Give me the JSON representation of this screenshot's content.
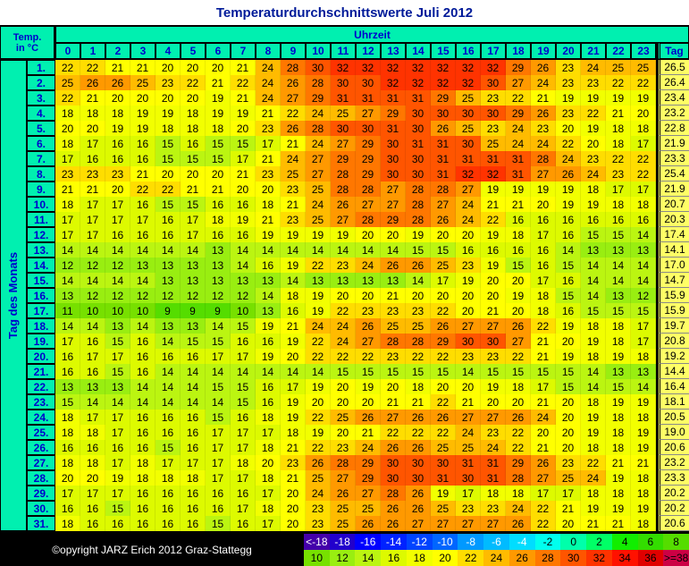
{
  "title": "Temperaturdurchschnittswerte Juli 2012",
  "corner_label": [
    "Temp.",
    "in °C"
  ],
  "column_group_label": "Uhrzeit",
  "row_group_label": "Tag des Monats",
  "total_label": "Tag",
  "hours": [
    0,
    1,
    2,
    3,
    4,
    5,
    6,
    7,
    8,
    9,
    10,
    11,
    12,
    13,
    14,
    15,
    16,
    17,
    18,
    19,
    20,
    21,
    22,
    23
  ],
  "rows": [
    {
      "label": "1.",
      "values": [
        22,
        22,
        21,
        21,
        20,
        20,
        20,
        21,
        24,
        28,
        30,
        32,
        32,
        32,
        32,
        32,
        32,
        32,
        29,
        26,
        23,
        24,
        25,
        25
      ],
      "mean": "26.5"
    },
    {
      "label": "2.",
      "values": [
        25,
        26,
        26,
        25,
        23,
        22,
        21,
        22,
        24,
        26,
        28,
        30,
        30,
        32,
        32,
        32,
        32,
        30,
        27,
        24,
        23,
        23,
        22,
        22
      ],
      "mean": "26.4"
    },
    {
      "label": "3.",
      "values": [
        22,
        21,
        20,
        20,
        20,
        20,
        19,
        21,
        24,
        27,
        29,
        31,
        31,
        31,
        31,
        29,
        25,
        23,
        22,
        21,
        19,
        19,
        19,
        19
      ],
      "mean": "23.4"
    },
    {
      "label": "4.",
      "values": [
        18,
        18,
        18,
        19,
        19,
        18,
        19,
        19,
        21,
        22,
        24,
        25,
        27,
        29,
        30,
        30,
        30,
        30,
        29,
        26,
        23,
        22,
        21,
        20
      ],
      "mean": "23.2"
    },
    {
      "label": "5.",
      "values": [
        20,
        20,
        19,
        19,
        18,
        18,
        18,
        20,
        23,
        26,
        28,
        30,
        30,
        31,
        30,
        26,
        25,
        23,
        24,
        23,
        20,
        19,
        18,
        18
      ],
      "mean": "22.8"
    },
    {
      "label": "6.",
      "values": [
        18,
        17,
        16,
        16,
        15,
        16,
        15,
        15,
        17,
        21,
        24,
        27,
        29,
        30,
        31,
        31,
        30,
        25,
        24,
        24,
        22,
        20,
        18,
        17
      ],
      "mean": "21.9"
    },
    {
      "label": "7.",
      "values": [
        17,
        16,
        16,
        16,
        15,
        15,
        15,
        17,
        21,
        24,
        27,
        29,
        29,
        30,
        30,
        31,
        31,
        31,
        31,
        28,
        24,
        23,
        22,
        22
      ],
      "mean": "23.3"
    },
    {
      "label": "8.",
      "values": [
        23,
        23,
        23,
        21,
        20,
        20,
        20,
        21,
        23,
        25,
        27,
        28,
        29,
        30,
        30,
        31,
        32,
        32,
        31,
        27,
        26,
        24,
        23,
        22
      ],
      "mean": "25.4"
    },
    {
      "label": "9.",
      "values": [
        21,
        21,
        20,
        22,
        22,
        21,
        21,
        20,
        20,
        23,
        25,
        28,
        28,
        27,
        28,
        28,
        27,
        19,
        19,
        19,
        19,
        18,
        17,
        17
      ],
      "mean": "21.9"
    },
    {
      "label": "10.",
      "values": [
        18,
        17,
        17,
        16,
        15,
        15,
        16,
        16,
        18,
        21,
        24,
        26,
        27,
        27,
        28,
        27,
        24,
        21,
        21,
        20,
        19,
        19,
        18,
        18
      ],
      "mean": "20.7"
    },
    {
      "label": "11.",
      "values": [
        17,
        17,
        17,
        17,
        16,
        17,
        18,
        19,
        21,
        23,
        25,
        27,
        28,
        29,
        28,
        26,
        24,
        22,
        16,
        16,
        16,
        16,
        16,
        16
      ],
      "mean": "20.3"
    },
    {
      "label": "12.",
      "values": [
        17,
        17,
        16,
        16,
        16,
        17,
        16,
        16,
        19,
        19,
        19,
        19,
        20,
        20,
        19,
        20,
        20,
        19,
        18,
        17,
        16,
        15,
        15,
        14
      ],
      "mean": "17.4"
    },
    {
      "label": "13.",
      "values": [
        14,
        14,
        14,
        14,
        14,
        14,
        13,
        14,
        14,
        14,
        14,
        14,
        14,
        14,
        15,
        15,
        16,
        16,
        16,
        16,
        14,
        13,
        13,
        13
      ],
      "mean": "14.1"
    },
    {
      "label": "14.",
      "values": [
        12,
        12,
        12,
        13,
        13,
        13,
        13,
        14,
        16,
        19,
        22,
        23,
        24,
        26,
        26,
        25,
        23,
        19,
        15,
        16,
        15,
        14,
        14,
        14
      ],
      "mean": "17.0"
    },
    {
      "label": "15.",
      "values": [
        14,
        14,
        14,
        14,
        13,
        13,
        13,
        13,
        13,
        14,
        13,
        13,
        13,
        13,
        14,
        17,
        19,
        20,
        20,
        17,
        16,
        14,
        14,
        14
      ],
      "mean": "14.7"
    },
    {
      "label": "16.",
      "values": [
        13,
        12,
        12,
        12,
        12,
        12,
        12,
        12,
        14,
        18,
        19,
        20,
        20,
        21,
        20,
        20,
        20,
        20,
        19,
        18,
        15,
        14,
        13,
        12
      ],
      "mean": "15.9"
    },
    {
      "label": "17.",
      "values": [
        11,
        10,
        10,
        10,
        9,
        9,
        9,
        10,
        13,
        16,
        19,
        22,
        23,
        23,
        23,
        22,
        20,
        21,
        20,
        18,
        16,
        15,
        15,
        15
      ],
      "mean": "15.9"
    },
    {
      "label": "18.",
      "values": [
        14,
        14,
        13,
        14,
        13,
        13,
        14,
        15,
        19,
        21,
        24,
        24,
        26,
        25,
        25,
        26,
        27,
        27,
        26,
        22,
        19,
        18,
        18,
        17
      ],
      "mean": "19.7"
    },
    {
      "label": "19.",
      "values": [
        17,
        16,
        15,
        16,
        14,
        15,
        15,
        16,
        16,
        19,
        22,
        24,
        27,
        28,
        28,
        29,
        30,
        30,
        27,
        21,
        20,
        19,
        18,
        17
      ],
      "mean": "20.8"
    },
    {
      "label": "20.",
      "values": [
        16,
        17,
        17,
        16,
        16,
        16,
        17,
        17,
        19,
        20,
        22,
        22,
        22,
        23,
        22,
        22,
        23,
        23,
        22,
        21,
        19,
        18,
        19,
        18
      ],
      "mean": "19.2"
    },
    {
      "label": "21.",
      "values": [
        16,
        16,
        15,
        16,
        14,
        14,
        14,
        14,
        14,
        14,
        14,
        15,
        15,
        15,
        15,
        15,
        14,
        15,
        15,
        15,
        15,
        14,
        13,
        13
      ],
      "mean": "14.4"
    },
    {
      "label": "22.",
      "values": [
        13,
        13,
        13,
        14,
        14,
        14,
        15,
        15,
        16,
        17,
        19,
        20,
        19,
        20,
        18,
        20,
        20,
        19,
        18,
        17,
        15,
        14,
        15,
        14
      ],
      "mean": "16.4"
    },
    {
      "label": "23.",
      "values": [
        15,
        14,
        14,
        14,
        14,
        14,
        14,
        15,
        16,
        19,
        20,
        20,
        20,
        21,
        21,
        22,
        21,
        20,
        20,
        21,
        20,
        18,
        19,
        19
      ],
      "mean": "18.1"
    },
    {
      "label": "24.",
      "values": [
        18,
        17,
        17,
        16,
        16,
        16,
        15,
        16,
        18,
        19,
        22,
        25,
        26,
        27,
        26,
        26,
        27,
        27,
        26,
        24,
        20,
        19,
        18,
        18
      ],
      "mean": "20.5"
    },
    {
      "label": "25.",
      "values": [
        18,
        18,
        17,
        16,
        16,
        16,
        17,
        17,
        17,
        18,
        19,
        20,
        21,
        22,
        22,
        22,
        24,
        23,
        22,
        20,
        20,
        19,
        18,
        19
      ],
      "mean": "19.0"
    },
    {
      "label": "26.",
      "values": [
        16,
        16,
        16,
        16,
        15,
        16,
        17,
        17,
        18,
        21,
        22,
        23,
        24,
        26,
        26,
        25,
        25,
        24,
        22,
        21,
        20,
        18,
        18,
        19
      ],
      "mean": "20.6"
    },
    {
      "label": "27.",
      "values": [
        18,
        18,
        17,
        18,
        17,
        17,
        17,
        18,
        20,
        23,
        26,
        28,
        29,
        30,
        30,
        30,
        31,
        31,
        29,
        26,
        23,
        22,
        21,
        21
      ],
      "mean": "23.2"
    },
    {
      "label": "28.",
      "values": [
        20,
        20,
        19,
        18,
        18,
        18,
        17,
        17,
        18,
        21,
        25,
        27,
        29,
        30,
        30,
        31,
        30,
        31,
        28,
        27,
        25,
        24,
        19,
        18
      ],
      "mean": "23.3"
    },
    {
      "label": "29.",
      "values": [
        17,
        17,
        17,
        16,
        16,
        16,
        16,
        16,
        17,
        20,
        24,
        26,
        27,
        28,
        26,
        19,
        17,
        18,
        18,
        17,
        17,
        18,
        18,
        18
      ],
      "mean": "20.2"
    },
    {
      "label": "30.",
      "values": [
        16,
        16,
        15,
        16,
        16,
        16,
        16,
        17,
        18,
        20,
        23,
        25,
        25,
        26,
        26,
        25,
        23,
        23,
        24,
        22,
        21,
        19,
        19,
        19
      ],
      "mean": "20.2"
    },
    {
      "label": "31.",
      "values": [
        18,
        16,
        16,
        16,
        16,
        16,
        15,
        16,
        17,
        20,
        23,
        25,
        26,
        26,
        27,
        27,
        27,
        27,
        26,
        22,
        20,
        21,
        21,
        18
      ],
      "mean": "20.6"
    }
  ],
  "legend": [
    [
      {
        "label": "<-18",
        "color": "#4400aa"
      },
      {
        "label": -18,
        "color": "#2200cc"
      },
      {
        "label": -16,
        "color": "#0000ff"
      },
      {
        "label": -14,
        "color": "#0022ff"
      },
      {
        "label": -12,
        "color": "#0044ff"
      },
      {
        "label": -10,
        "color": "#0066ff"
      },
      {
        "label": -8,
        "color": "#0099ff"
      },
      {
        "label": -6,
        "color": "#00bbff"
      },
      {
        "label": -4,
        "color": "#00ddff"
      },
      {
        "label": -2,
        "color": "#00ffee"
      },
      {
        "label": 0,
        "color": "#00ffaa"
      },
      {
        "label": 2,
        "color": "#00ff66"
      },
      {
        "label": 4,
        "color": "#11ee00"
      },
      {
        "label": 6,
        "color": "#33dd00"
      },
      {
        "label": 8,
        "color": "#55dd00"
      }
    ],
    [
      {
        "label": 10,
        "color": "#77e000"
      },
      {
        "label": 12,
        "color": "#99ee11"
      },
      {
        "label": 14,
        "color": "#bbf511"
      },
      {
        "label": 16,
        "color": "#ddfa00"
      },
      {
        "label": 18,
        "color": "#f2ff00"
      },
      {
        "label": 20,
        "color": "#ffff00"
      },
      {
        "label": 22,
        "color": "#ffdd00"
      },
      {
        "label": 24,
        "color": "#ffbb00"
      },
      {
        "label": 26,
        "color": "#ff9900"
      },
      {
        "label": 28,
        "color": "#ff7700"
      },
      {
        "label": 30,
        "color": "#ff5500"
      },
      {
        "label": 32,
        "color": "#ff3300"
      },
      {
        "label": 34,
        "color": "#ff1100"
      },
      {
        "label": 36,
        "color": "#e00000"
      },
      {
        "label": ">=38",
        "color": "#cc0044"
      }
    ]
  ],
  "footer": "©opyright JARZ Erich 2012 Graz-Stattegg"
}
